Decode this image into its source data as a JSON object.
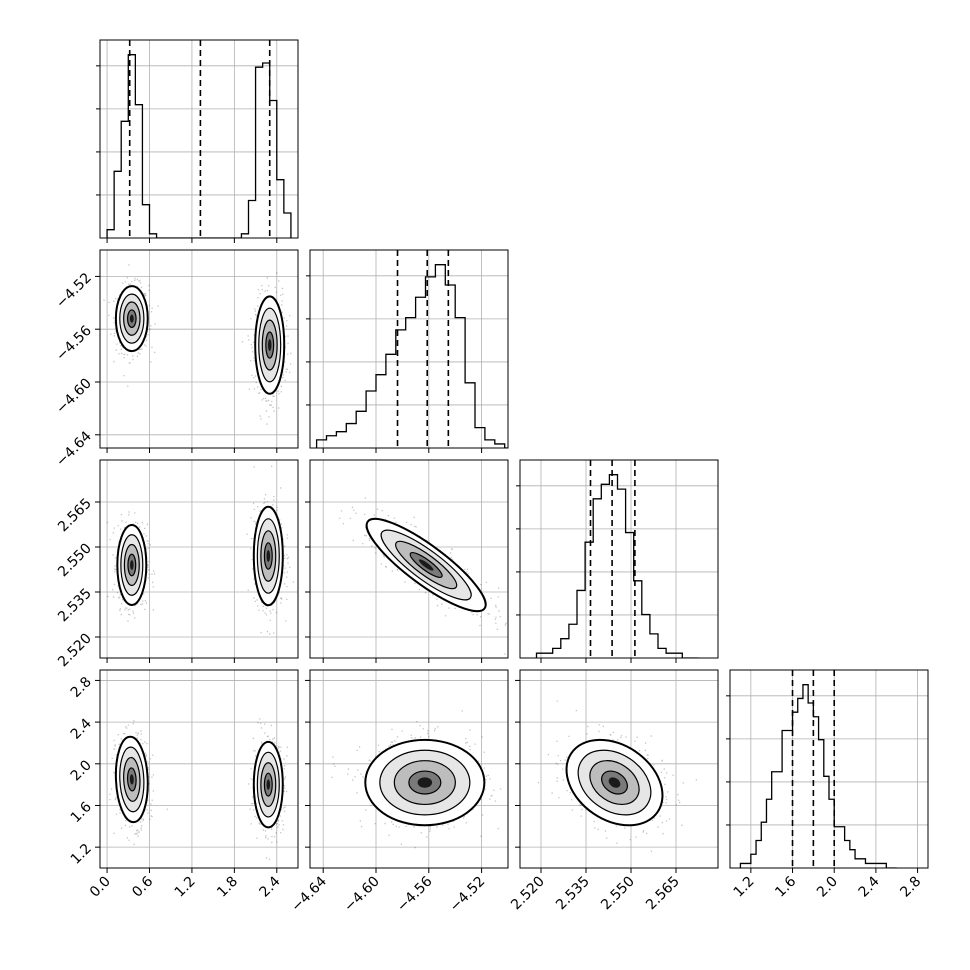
{
  "chart_data": {
    "type": "corner",
    "grid": true,
    "parameters": [
      {
        "range": [
          -0.1,
          2.7
        ],
        "ticks": [
          0.0,
          0.6,
          1.2,
          1.8,
          2.4
        ],
        "tick_labels": [
          "0.0",
          "0.6",
          "1.2",
          "1.8",
          "2.4"
        ],
        "quantiles": [
          0.32,
          1.32,
          2.3
        ],
        "hist_edges": [
          0.0,
          0.1,
          0.2,
          0.3,
          0.4,
          0.5,
          0.6,
          0.7,
          0.8,
          1.9,
          2.0,
          2.1,
          2.2,
          2.3,
          2.4,
          2.5,
          2.6
        ],
        "hist_counts": [
          2,
          16,
          28,
          44,
          32,
          8,
          1,
          0,
          0,
          1,
          9,
          41,
          42,
          33,
          14,
          6
        ]
      },
      {
        "range": [
          -4.65,
          -4.5
        ],
        "ticks": [
          -4.64,
          -4.6,
          -4.56,
          -4.52
        ],
        "tick_labels": [
          "−4.64",
          "−4.60",
          "−4.56",
          "−4.52"
        ],
        "quantiles": [
          -4.5837,
          -4.5612,
          -4.5452
        ],
        "hist_edges": [
          -4.645,
          -4.6375,
          -4.63,
          -4.6225,
          -4.615,
          -4.6075,
          -4.6,
          -4.5925,
          -4.585,
          -4.5775,
          -4.57,
          -4.5625,
          -4.555,
          -4.5475,
          -4.54,
          -4.5325,
          -4.525,
          -4.5175,
          -4.51,
          -4.5025,
          -4.495
        ],
        "hist_counts": [
          2,
          3,
          4,
          6,
          9,
          14,
          18,
          23,
          29,
          32,
          37,
          42,
          45,
          40,
          32,
          16,
          5,
          2,
          1,
          0
        ]
      },
      {
        "range": [
          2.513,
          2.579
        ],
        "ticks": [
          2.52,
          2.535,
          2.55,
          2.565
        ],
        "tick_labels": [
          "2.520",
          "2.535",
          "2.550",
          "2.565"
        ],
        "quantiles": [
          2.5365,
          2.5437,
          2.5513
        ],
        "hist_edges": [
          2.5185,
          2.5212,
          2.5239,
          2.5266,
          2.5293,
          2.532,
          2.5347,
          2.5374,
          2.5401,
          2.5428,
          2.5455,
          2.5482,
          2.5509,
          2.5536,
          2.5563,
          2.559,
          2.5617,
          2.5644,
          2.5671,
          2.5698,
          2.5725
        ],
        "hist_counts": [
          1,
          1,
          2,
          4,
          7,
          14,
          24,
          33,
          36,
          38,
          35,
          26,
          16,
          9,
          5,
          2,
          1,
          1,
          0,
          0
        ]
      },
      {
        "range": [
          1.0,
          2.9
        ],
        "ticks": [
          1.2,
          1.6,
          2.0,
          2.4,
          2.8
        ],
        "tick_labels": [
          "1.2",
          "1.6",
          "2.0",
          "2.4",
          "2.8"
        ],
        "quantiles": [
          1.6,
          1.8,
          2.0
        ],
        "hist_edges": [
          1.1,
          1.2,
          1.25,
          1.3,
          1.35,
          1.4,
          1.5,
          1.6,
          1.65,
          1.7,
          1.75,
          1.8,
          1.85,
          1.9,
          1.95,
          2.0,
          2.1,
          2.15,
          2.2,
          2.3,
          2.4,
          2.5,
          2.6
        ],
        "hist_counts": [
          1,
          3,
          6,
          10,
          15,
          21,
          30,
          34,
          37,
          40,
          36,
          33,
          28,
          20,
          15,
          9,
          6,
          4,
          2,
          1,
          1,
          0
        ]
      }
    ],
    "density_panels": [
      {
        "x_param": 0,
        "y_param": 1,
        "clusters": [
          {
            "cx": 0.35,
            "cy": -4.552,
            "sx": 0.11,
            "sy": 0.012,
            "rho": 0.0,
            "weight": 1.0
          },
          {
            "cx": 2.3,
            "cy": -4.572,
            "sx": 0.1,
            "sy": 0.018,
            "rho": 0.0,
            "weight": 1.0
          }
        ]
      },
      {
        "x_param": 0,
        "y_param": 2,
        "clusters": [
          {
            "cx": 0.35,
            "cy": 2.544,
            "sx": 0.1,
            "sy": 0.0065,
            "rho": 0.0,
            "weight": 1.0
          },
          {
            "cx": 2.28,
            "cy": 2.547,
            "sx": 0.1,
            "sy": 0.008,
            "rho": 0.0,
            "weight": 1.0
          }
        ]
      },
      {
        "x_param": 1,
        "y_param": 2,
        "clusters": [
          {
            "cx": -4.562,
            "cy": 2.544,
            "sx": 0.022,
            "sy": 0.0075,
            "rho": -0.86,
            "weight": 1.0
          }
        ]
      },
      {
        "x_param": 0,
        "y_param": 3,
        "clusters": [
          {
            "cx": 0.35,
            "cy": 1.85,
            "sx": 0.11,
            "sy": 0.2,
            "rho": -0.1,
            "weight": 1.0
          },
          {
            "cx": 2.28,
            "cy": 1.8,
            "sx": 0.1,
            "sy": 0.2,
            "rho": 0.0,
            "weight": 1.0
          }
        ]
      },
      {
        "x_param": 1,
        "y_param": 3,
        "clusters": [
          {
            "cx": -4.563,
            "cy": 1.82,
            "sx": 0.022,
            "sy": 0.2,
            "rho": 0.0,
            "weight": 1.0
          }
        ]
      },
      {
        "x_param": 2,
        "y_param": 3,
        "clusters": [
          {
            "cx": 2.5445,
            "cy": 1.82,
            "sx": 0.0078,
            "sy": 0.2,
            "rho": -0.3,
            "weight": 1.0
          }
        ]
      }
    ]
  }
}
